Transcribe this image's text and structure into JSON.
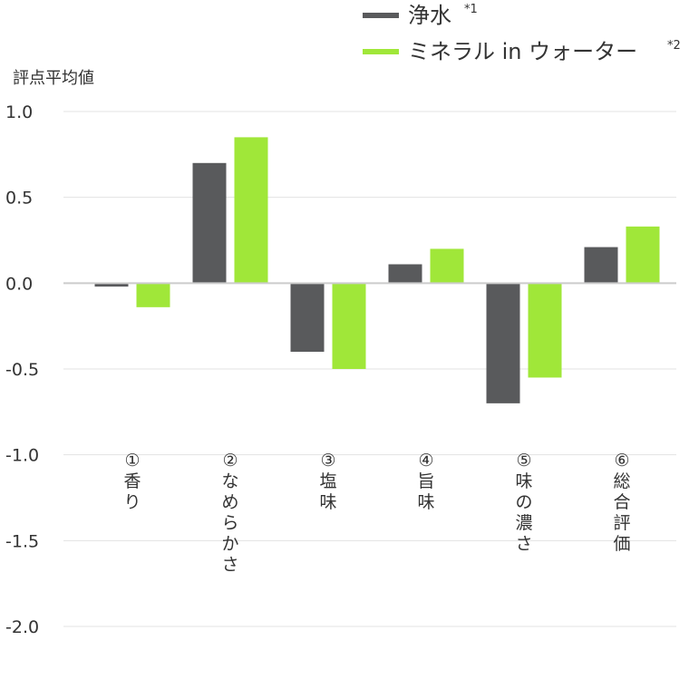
{
  "chart_data": {
    "type": "bar",
    "ylabel": "評点平均値",
    "ylim": [
      -2.0,
      1.0
    ],
    "yticks": [
      1.0,
      0.5,
      0.0,
      -0.5,
      -1.0,
      -1.5,
      -2.0
    ],
    "ytick_labels": [
      "1.0",
      "0.5",
      "0.0",
      "-0.5",
      "-1.0",
      "-1.5",
      "-2.0"
    ],
    "grid": true,
    "legend_position": "top",
    "categories": [
      "①香り",
      "②なめらかさ",
      "③塩味",
      "④旨味",
      "⑤味の濃さ",
      "⑥総合評価"
    ],
    "series": [
      {
        "name": "浄水",
        "note": "*1",
        "color": "#595a5c",
        "values": [
          -0.02,
          0.7,
          -0.4,
          0.11,
          -0.7,
          0.21
        ]
      },
      {
        "name": "ミネラル in ウォーター",
        "note": "*2",
        "color": "#a0e739",
        "values": [
          -0.14,
          0.85,
          -0.5,
          0.2,
          -0.55,
          0.33
        ]
      }
    ]
  }
}
